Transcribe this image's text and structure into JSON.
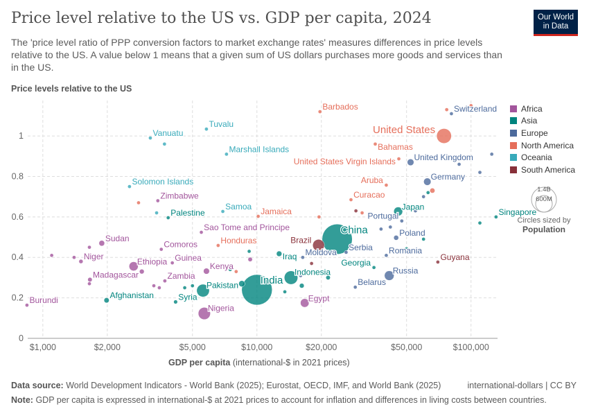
{
  "header": {
    "title": "Price level relative to the US vs. GDP per capita, 2024",
    "subtitle": "The 'price level ratio of PPP conversion factors to market exchange rates' measures differences in price levels relative to the US. A value below 1 means that a given sum of US dollars purchases more goods and services than in the US.",
    "logo_line1": "Our World",
    "logo_line2": "in Data"
  },
  "footer": {
    "source_label": "Data source:",
    "source": "World Development Indicators - World Bank (2025); Eurostat, OECD, IMF, and World Bank (2025)",
    "license": "international-dollars | CC BY",
    "note_label": "Note:",
    "note": "GDP per capita is expressed in international-$ at 2021 prices to account for inflation and differences in living costs between countries."
  },
  "size_legend": {
    "big": "1.4B",
    "small": "600M",
    "line1": "Circles sized by",
    "line2": "Population"
  },
  "chart_data": {
    "type": "scatter",
    "title": "Price level relative to the US vs. GDP per capita, 2024",
    "ylabel": "Price levels relative to the US",
    "xlabel": "GDP per capita",
    "xlabel_note": "(international-$ in 2021 prices)",
    "xscale": "log",
    "xlim": [
      850,
      133000
    ],
    "ylim": [
      0,
      1.175
    ],
    "xticks": [
      {
        "v": 1000,
        "label": "$1,000"
      },
      {
        "v": 2000,
        "label": "$2,000"
      },
      {
        "v": 5000,
        "label": "$5,000"
      },
      {
        "v": 10000,
        "label": "$10,000"
      },
      {
        "v": 20000,
        "label": "$20,000"
      },
      {
        "v": 50000,
        "label": "$50,000"
      },
      {
        "v": 100000,
        "label": "$100,000"
      }
    ],
    "yticks": [
      {
        "v": 0,
        "label": "0"
      },
      {
        "v": 0.2,
        "label": "0.2"
      },
      {
        "v": 0.4,
        "label": "0.4"
      },
      {
        "v": 0.6,
        "label": "0.6"
      },
      {
        "v": 0.8,
        "label": "0.8"
      },
      {
        "v": 1,
        "label": "1"
      }
    ],
    "legend_placement": "right",
    "regions": [
      {
        "name": "Africa",
        "color": "#a2559c"
      },
      {
        "name": "Asia",
        "color": "#00847e"
      },
      {
        "name": "Europe",
        "color": "#4c6a9c"
      },
      {
        "name": "North America",
        "color": "#e56e5a"
      },
      {
        "name": "Oceania",
        "color": "#38aaba"
      },
      {
        "name": "South America",
        "color": "#883039"
      }
    ],
    "points": [
      {
        "label": "Burundi",
        "r": "Africa",
        "x": 843,
        "y": 0.164,
        "pop": 14
      },
      {
        "label": "Afghanistan",
        "r": "Asia",
        "x": 1985,
        "y": 0.188,
        "pop": 42
      },
      {
        "label": "Sudan",
        "r": "Africa",
        "x": 1885,
        "y": 0.47,
        "pop": 50
      },
      {
        "label": "Niger",
        "r": "Africa",
        "x": 1507,
        "y": 0.38,
        "pop": 27
      },
      {
        "label": "Madagascar",
        "r": "Africa",
        "x": 1660,
        "y": 0.29,
        "pop": 31
      },
      {
        "label": "Ethiopia",
        "r": "Africa",
        "x": 2655,
        "y": 0.356,
        "pop": 130
      },
      {
        "label": "Zimbabwe",
        "r": "Africa",
        "x": 3445,
        "y": 0.68,
        "pop": 17
      },
      {
        "label": "Solomon Islands",
        "r": "Oceania",
        "x": 2540,
        "y": 0.75,
        "pop": 1
      },
      {
        "label": "Vanuatu",
        "r": "Oceania",
        "x": 3178,
        "y": 0.99,
        "pop": 0.3
      },
      {
        "label": "Tuvalu",
        "r": "Oceania",
        "x": 5810,
        "y": 1.034,
        "pop": 0.01
      },
      {
        "label": "Marshall Islands",
        "r": "Oceania",
        "x": 7210,
        "y": 0.91,
        "pop": 0.04
      },
      {
        "label": "Palestine",
        "r": "Asia",
        "x": 3850,
        "y": 0.596,
        "pop": 5
      },
      {
        "label": "Comoros",
        "r": "Africa",
        "x": 3575,
        "y": 0.44,
        "pop": 0.9
      },
      {
        "label": "Guinea",
        "r": "Africa",
        "x": 4025,
        "y": 0.373,
        "pop": 14
      },
      {
        "label": "Zambia",
        "r": "Africa",
        "x": 3715,
        "y": 0.284,
        "pop": 21
      },
      {
        "label": "Syria",
        "r": "Asia",
        "x": 4170,
        "y": 0.18,
        "pop": 24
      },
      {
        "label": "Pakistan",
        "r": "Asia",
        "x": 5600,
        "y": 0.236,
        "pop": 250
      },
      {
        "label": "Nigeria",
        "r": "Africa",
        "x": 5680,
        "y": 0.123,
        "pop": 230
      },
      {
        "label": "Kenya",
        "r": "Africa",
        "x": 5810,
        "y": 0.332,
        "pop": 56
      },
      {
        "label": "Sao Tome and Principe",
        "r": "Africa",
        "x": 5500,
        "y": 0.524,
        "pop": 0.2
      },
      {
        "label": "Honduras",
        "r": "North America",
        "x": 6590,
        "y": 0.459,
        "pop": 11
      },
      {
        "label": "Samoa",
        "r": "Oceania",
        "x": 6930,
        "y": 0.627,
        "pop": 0.2
      },
      {
        "label": "Jamaica",
        "r": "North America",
        "x": 10140,
        "y": 0.603,
        "pop": 2.8
      },
      {
        "label": "India",
        "r": "Asia",
        "x": 10000,
        "y": 0.24,
        "pop": 1450
      },
      {
        "label": "Iraq",
        "r": "Asia",
        "x": 12700,
        "y": 0.418,
        "pop": 46
      },
      {
        "label": "Indonesia",
        "r": "Asia",
        "x": 14430,
        "y": 0.3,
        "pop": 283
      },
      {
        "label": "Moldova",
        "r": "Europe",
        "x": 16370,
        "y": 0.4,
        "pop": 3
      },
      {
        "label": "Egypt",
        "r": "Africa",
        "x": 16720,
        "y": 0.175,
        "pop": 116
      },
      {
        "label": "Brazil",
        "r": "South America",
        "x": 19400,
        "y": 0.46,
        "pop": 212
      },
      {
        "label": "China",
        "r": "Asia",
        "x": 23700,
        "y": 0.49,
        "pop": 1420
      },
      {
        "label": "Serbia",
        "r": "Europe",
        "x": 26100,
        "y": 0.425,
        "pop": 6.7
      },
      {
        "label": "Georgia",
        "r": "Asia",
        "x": 35200,
        "y": 0.35,
        "pop": 3.8
      },
      {
        "label": "Belarus",
        "r": "Europe",
        "x": 28800,
        "y": 0.253,
        "pop": 9
      },
      {
        "label": "Russia",
        "r": "Europe",
        "x": 41500,
        "y": 0.31,
        "pop": 145
      },
      {
        "label": "Romania",
        "r": "Europe",
        "x": 40200,
        "y": 0.41,
        "pop": 19
      },
      {
        "label": "Poland",
        "r": "Europe",
        "x": 44700,
        "y": 0.497,
        "pop": 38
      },
      {
        "label": "Japan",
        "r": "Asia",
        "x": 45700,
        "y": 0.627,
        "pop": 124
      },
      {
        "label": "Portugal",
        "r": "Europe",
        "x": 47500,
        "y": 0.58,
        "pop": 10
      },
      {
        "label": "Guyana",
        "r": "South America",
        "x": 70000,
        "y": 0.377,
        "pop": 0.8
      },
      {
        "label": "Singapore",
        "r": "Asia",
        "x": 130900,
        "y": 0.6,
        "pop": 6
      },
      {
        "label": "Barbados",
        "r": "North America",
        "x": 19700,
        "y": 1.12,
        "pop": 0.3
      },
      {
        "label": "Bahamas",
        "r": "North America",
        "x": 35700,
        "y": 0.96,
        "pop": 0.4
      },
      {
        "label": "United States",
        "r": "North America",
        "x": 74800,
        "y": 1.0,
        "pop": 340
      },
      {
        "label": "United States Virgin Islands",
        "r": "North America",
        "x": 46000,
        "y": 0.887,
        "pop": 0.1
      },
      {
        "label": "Switzerland",
        "r": "Europe",
        "x": 81000,
        "y": 1.11,
        "pop": 9
      },
      {
        "label": "United Kingdom",
        "r": "Europe",
        "x": 52200,
        "y": 0.87,
        "pop": 69
      },
      {
        "label": "Germany",
        "r": "Europe",
        "x": 62500,
        "y": 0.774,
        "pop": 84
      },
      {
        "label": "Aruba",
        "r": "North America",
        "x": 40200,
        "y": 0.757,
        "pop": 0.1
      },
      {
        "label": "Curacao",
        "r": "North America",
        "x": 27500,
        "y": 0.685,
        "pop": 0.2
      },
      {
        "label": "",
        "r": "Africa",
        "x": 1100,
        "y": 0.41,
        "pop": 6
      },
      {
        "label": "",
        "r": "Africa",
        "x": 1400,
        "y": 0.4,
        "pop": 3
      },
      {
        "label": "",
        "r": "Africa",
        "x": 1650,
        "y": 0.45,
        "pop": 5
      },
      {
        "label": "",
        "r": "Africa",
        "x": 1650,
        "y": 0.27,
        "pop": 4
      },
      {
        "label": "",
        "r": "Africa",
        "x": 2900,
        "y": 0.33,
        "pop": 35
      },
      {
        "label": "",
        "r": "Africa",
        "x": 3300,
        "y": 0.26,
        "pop": 3
      },
      {
        "label": "",
        "r": "Africa",
        "x": 3500,
        "y": 0.25,
        "pop": 4
      },
      {
        "label": "",
        "r": "Oceania",
        "x": 3700,
        "y": 0.96,
        "pop": 0.1
      },
      {
        "label": "",
        "r": "North America",
        "x": 2800,
        "y": 0.67,
        "pop": 11
      },
      {
        "label": "",
        "r": "Oceania",
        "x": 3400,
        "y": 0.62,
        "pop": 0.7
      },
      {
        "label": "",
        "r": "Asia",
        "x": 4600,
        "y": 0.25,
        "pop": 3
      },
      {
        "label": "",
        "r": "Asia",
        "x": 5000,
        "y": 0.26,
        "pop": 17
      },
      {
        "label": "",
        "r": "Asia",
        "x": 8500,
        "y": 0.27,
        "pop": 60
      },
      {
        "label": "",
        "r": "Africa",
        "x": 7800,
        "y": 0.26,
        "pop": 5
      },
      {
        "label": "",
        "r": "Asia",
        "x": 7500,
        "y": 0.34,
        "pop": 3
      },
      {
        "label": "",
        "r": "North America",
        "x": 8000,
        "y": 0.33,
        "pop": 4
      },
      {
        "label": "",
        "r": "Africa",
        "x": 9300,
        "y": 0.39,
        "pop": 30
      },
      {
        "label": "",
        "r": "Asia",
        "x": 9200,
        "y": 0.43,
        "pop": 2
      },
      {
        "label": "",
        "r": "Africa",
        "x": 7600,
        "y": 0.26,
        "pop": 6
      },
      {
        "label": "",
        "r": "Asia",
        "x": 13500,
        "y": 0.23,
        "pop": 3
      },
      {
        "label": "",
        "r": "Asia",
        "x": 16200,
        "y": 0.26,
        "pop": 35
      },
      {
        "label": "",
        "r": "Europe",
        "x": 16000,
        "y": 0.31,
        "pop": 10
      },
      {
        "label": "",
        "r": "South America",
        "x": 18000,
        "y": 0.37,
        "pop": 20
      },
      {
        "label": "",
        "r": "Asia",
        "x": 21500,
        "y": 0.3,
        "pop": 30
      },
      {
        "label": "",
        "r": "North America",
        "x": 19500,
        "y": 0.6,
        "pop": 5
      },
      {
        "label": "",
        "r": "South America",
        "x": 29000,
        "y": 0.63,
        "pop": 18
      },
      {
        "label": "",
        "r": "North America",
        "x": 31000,
        "y": 0.62,
        "pop": 3
      },
      {
        "label": "",
        "r": "Europe",
        "x": 38000,
        "y": 0.54,
        "pop": 6
      },
      {
        "label": "",
        "r": "Europe",
        "x": 42000,
        "y": 0.55,
        "pop": 5
      },
      {
        "label": "",
        "r": "Asia",
        "x": 50000,
        "y": 0.44,
        "pop": 30
      },
      {
        "label": "",
        "r": "Asia",
        "x": 60000,
        "y": 0.49,
        "pop": 5
      },
      {
        "label": "",
        "r": "Europe",
        "x": 60000,
        "y": 0.7,
        "pop": 10
      },
      {
        "label": "",
        "r": "Asia",
        "x": 63000,
        "y": 0.72,
        "pop": 5
      },
      {
        "label": "",
        "r": "North America",
        "x": 66000,
        "y": 0.73,
        "pop": 40
      },
      {
        "label": "",
        "r": "Europe",
        "x": 88000,
        "y": 0.86,
        "pop": 5
      },
      {
        "label": "",
        "r": "Europe",
        "x": 110000,
        "y": 0.82,
        "pop": 5
      },
      {
        "label": "",
        "r": "Europe",
        "x": 125000,
        "y": 0.91,
        "pop": 0.6
      },
      {
        "label": "",
        "r": "North America",
        "x": 100000,
        "y": 1.15,
        "pop": 0.06
      },
      {
        "label": "",
        "r": "North America",
        "x": 77000,
        "y": 1.13,
        "pop": 0.06
      },
      {
        "label": "",
        "r": "Asia",
        "x": 110000,
        "y": 0.57,
        "pop": 3
      },
      {
        "label": "",
        "r": "Europe",
        "x": 55000,
        "y": 0.63,
        "pop": 11
      },
      {
        "label": "",
        "r": "Asia",
        "x": 52000,
        "y": 0.64,
        "pop": 3
      }
    ]
  }
}
